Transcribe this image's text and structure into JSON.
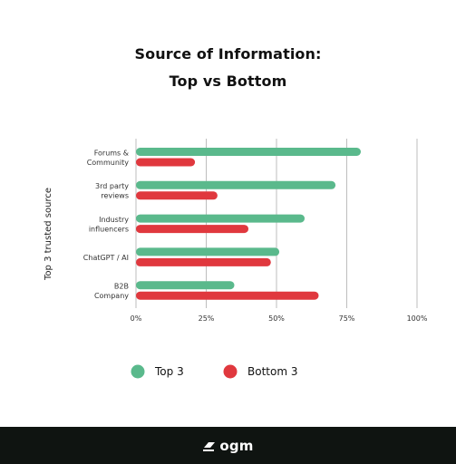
{
  "chart_data": {
    "type": "bar",
    "orientation": "horizontal",
    "title_lines": [
      "Source of Information:",
      "Top vs Bottom"
    ],
    "ylabel": "Top 3 trusted source",
    "categories": [
      [
        "Forums &",
        "Community"
      ],
      [
        "3rd party",
        "reviews"
      ],
      [
        "Industry",
        "influencers"
      ],
      [
        "ChatGPT / AI"
      ],
      [
        "B2B",
        "Company"
      ]
    ],
    "x_ticks": [
      "0%",
      "25%",
      "50%",
      "75%",
      "100%"
    ],
    "xlim": [
      0,
      100
    ],
    "series": [
      {
        "name": "Top 3",
        "color": "#5ab98c",
        "values": [
          80,
          71,
          60,
          51,
          35
        ]
      },
      {
        "name": "Bottom 3",
        "color": "#e0383e",
        "values": [
          21,
          29,
          40,
          48,
          65
        ]
      }
    ],
    "grid": true,
    "legend_position": "bottom"
  },
  "footer": {
    "logo_text": "ogm",
    "background": "#0f1411"
  }
}
